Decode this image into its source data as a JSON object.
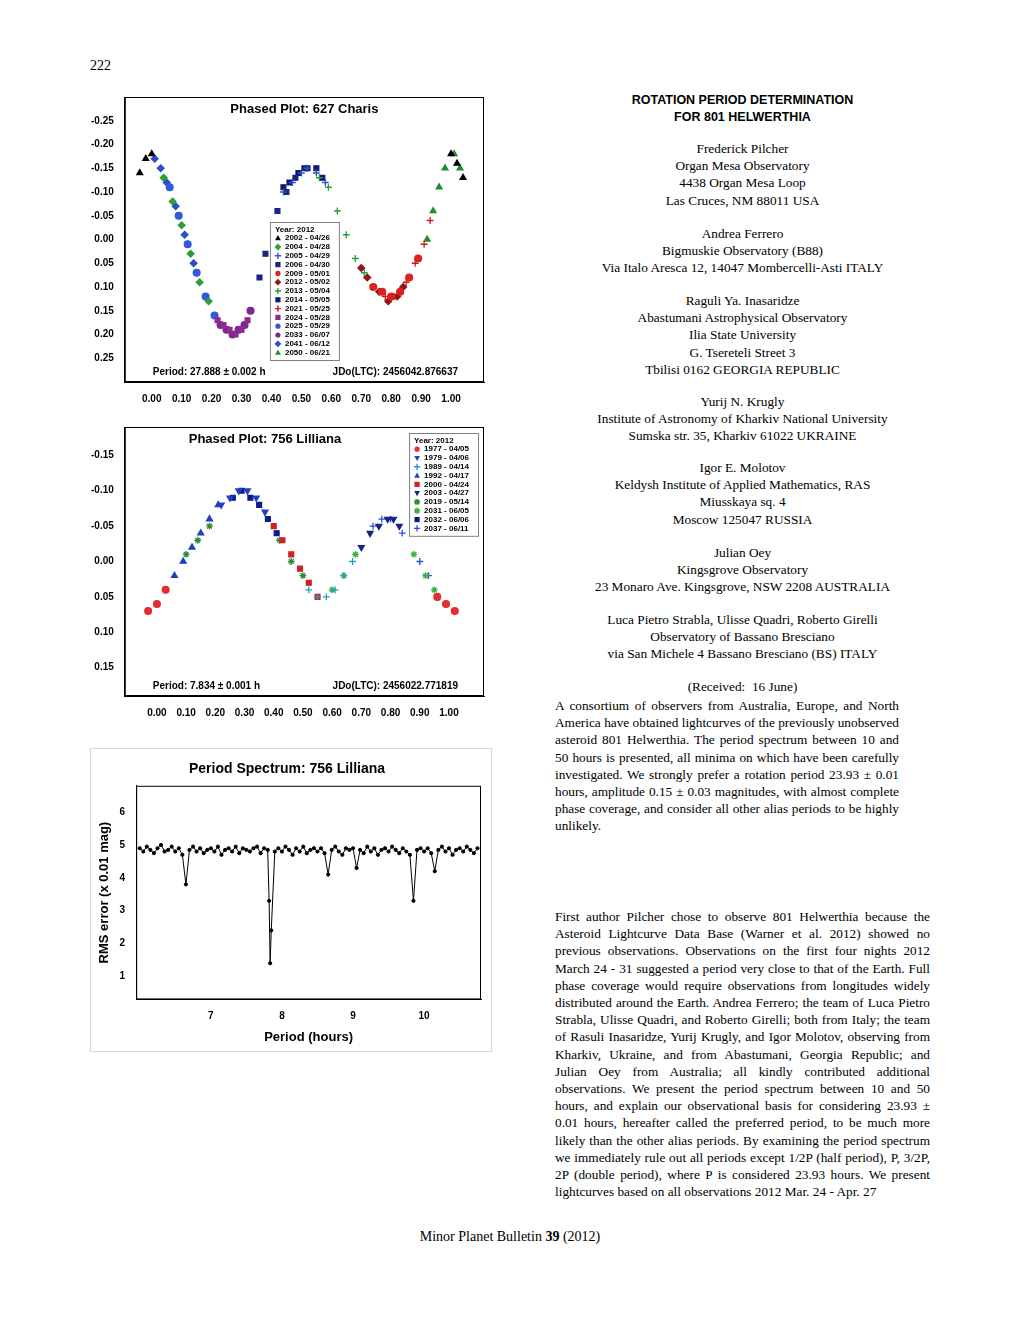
{
  "page_number": "222",
  "chart_data": [
    {
      "type": "scatter",
      "title": "Phased Plot: 627 Charis",
      "legend": "lower center",
      "legend_title": "Year: 2012",
      "annotations": [
        "Period: 27.888 ± 0.002 h",
        "JDo(LTC): 2456042.876637"
      ],
      "grid": false,
      "xlim": [
        -0.09,
        1.11
      ],
      "xticks": [
        {
          "value": 0,
          "label": "0.00"
        },
        {
          "value": 0.1,
          "label": "0.10"
        },
        {
          "value": 0.2,
          "label": "0.20"
        },
        {
          "value": 0.3,
          "label": "0.30"
        },
        {
          "value": 0.4,
          "label": "0.40"
        },
        {
          "value": 0.5,
          "label": "0.50"
        },
        {
          "value": 0.6,
          "label": "0.60"
        },
        {
          "value": 0.7,
          "label": "0.70"
        },
        {
          "value": 0.8,
          "label": "0.80"
        },
        {
          "value": 0.9,
          "label": "0.90"
        },
        {
          "value": 1,
          "label": "1.00"
        }
      ],
      "ylim": [
        0.3,
        -0.3
      ],
      "yticks": [
        {
          "value": -0.25,
          "label": "-0.25"
        },
        {
          "value": -0.2,
          "label": "-0.20"
        },
        {
          "value": -0.15,
          "label": "-0.15"
        },
        {
          "value": -0.1,
          "label": "-0.10"
        },
        {
          "value": -0.05,
          "label": "-0.05"
        },
        {
          "value": 0,
          "label": "0.00"
        },
        {
          "value": 0.05,
          "label": "0.05"
        },
        {
          "value": 0.1,
          "label": "0.10"
        },
        {
          "value": 0.15,
          "label": "0.15"
        },
        {
          "value": 0.2,
          "label": "0.20"
        },
        {
          "value": 0.25,
          "label": "0.25"
        }
      ],
      "series": [
        {
          "name": "2002 - 04/26",
          "color": "#000000",
          "marker": "triangle",
          "x": [
            -0.04,
            -0.02,
            0.0,
            1.0,
            1.02,
            1.04
          ],
          "values": [
            -0.14,
            -0.17,
            -0.18,
            -0.18,
            -0.16,
            -0.13
          ]
        },
        {
          "name": "2004 - 04/28",
          "color": "#2e9e3e",
          "marker": "diamond",
          "x": [
            0.04,
            0.07,
            0.1,
            0.13,
            0.16,
            0.19
          ],
          "values": [
            -0.13,
            -0.08,
            -0.03,
            0.03,
            0.09,
            0.13
          ]
        },
        {
          "name": "2005 - 04/29",
          "color": "#3050d0",
          "marker": "plus",
          "x": [
            0.44,
            0.47,
            0.5,
            0.52,
            0.55,
            0.58
          ],
          "values": [
            -0.1,
            -0.12,
            -0.14,
            -0.15,
            -0.14,
            -0.12
          ]
        },
        {
          "name": "2006 - 04/30",
          "color": "#1a237e",
          "marker": "square",
          "x": [
            0.36,
            0.38,
            0.42,
            0.45,
            0.48,
            0.51
          ],
          "values": [
            0.08,
            0.03,
            -0.06,
            -0.1,
            -0.13,
            -0.15
          ]
        },
        {
          "name": "2009 - 05/01",
          "color": "#e02020",
          "marker": "circle",
          "x": [
            0.74,
            0.77,
            0.8,
            0.83,
            0.86,
            0.89
          ],
          "values": [
            0.1,
            0.11,
            0.12,
            0.11,
            0.08,
            0.04
          ]
        },
        {
          "name": "2012 - 05/02",
          "color": "#8b1a1a",
          "marker": "diamond",
          "x": [
            0.7,
            0.72,
            0.76,
            0.79,
            0.82,
            0.84
          ],
          "values": [
            0.06,
            0.08,
            0.11,
            0.13,
            0.12,
            0.1
          ]
        },
        {
          "name": "2013 - 05/04",
          "color": "#22a033",
          "marker": "plus",
          "x": [
            0.56,
            0.59,
            0.62,
            0.65,
            0.68,
            0.71
          ],
          "values": [
            -0.13,
            -0.11,
            -0.06,
            -0.01,
            0.04,
            0.07
          ]
        },
        {
          "name": "2014 - 05/05",
          "color": "#0d1b6e",
          "marker": "square",
          "x": [
            0.44,
            0.46,
            0.49,
            0.52,
            0.55,
            0.57
          ],
          "values": [
            -0.11,
            -0.12,
            -0.14,
            -0.15,
            -0.15,
            -0.13
          ]
        },
        {
          "name": "2021 - 05/25",
          "color": "#d01818",
          "marker": "plus",
          "x": [
            0.78,
            0.81,
            0.85,
            0.88,
            0.91,
            0.93
          ],
          "values": [
            0.12,
            0.12,
            0.09,
            0.05,
            0.01,
            -0.04
          ]
        },
        {
          "name": "2024 - 05/28",
          "color": "#8e2a8e",
          "marker": "square",
          "x": [
            0.22,
            0.24,
            0.26,
            0.28,
            0.3,
            0.32
          ],
          "values": [
            0.17,
            0.18,
            0.19,
            0.2,
            0.19,
            0.17
          ]
        },
        {
          "name": "2025 - 05/29",
          "color": "#2f5bd8",
          "marker": "circle",
          "x": [
            0.06,
            0.09,
            0.12,
            0.15,
            0.18,
            0.21
          ],
          "values": [
            -0.11,
            -0.05,
            0.01,
            0.07,
            0.12,
            0.16
          ]
        },
        {
          "name": "2033 - 06/07",
          "color": "#7b2a8a",
          "marker": "circle",
          "x": [
            0.23,
            0.25,
            0.27,
            0.29,
            0.31,
            0.33
          ],
          "values": [
            0.18,
            0.19,
            0.2,
            0.19,
            0.18,
            0.15
          ]
        },
        {
          "name": "2041 - 06/12",
          "color": "#2a4fc8",
          "marker": "diamond",
          "x": [
            0.01,
            0.03,
            0.05,
            0.08,
            0.11,
            0.14
          ],
          "values": [
            -0.17,
            -0.15,
            -0.12,
            -0.07,
            -0.01,
            0.05
          ]
        },
        {
          "name": "2050 - 06/21",
          "color": "#1f8f2f",
          "marker": "triangle",
          "x": [
            0.92,
            0.94,
            0.96,
            0.98,
            1.01,
            1.03
          ],
          "values": [
            0.0,
            -0.06,
            -0.11,
            -0.15,
            -0.18,
            -0.15
          ]
        }
      ]
    },
    {
      "type": "scatter",
      "title": "Phased Plot: 756 Lilliana",
      "legend": "upper right",
      "legend_title": "Year: 2012",
      "annotations": [
        "Period: 7.834 ± 0.001 h",
        "JDo(LTC): 2456022.771819"
      ],
      "grid": false,
      "xlim": [
        -0.11,
        1.12
      ],
      "xticks": [
        {
          "value": 0,
          "label": "0.00"
        },
        {
          "value": 0.1,
          "label": "0.10"
        },
        {
          "value": 0.2,
          "label": "0.20"
        },
        {
          "value": 0.3,
          "label": "0.30"
        },
        {
          "value": 0.4,
          "label": "0.40"
        },
        {
          "value": 0.5,
          "label": "0.50"
        },
        {
          "value": 0.6,
          "label": "0.60"
        },
        {
          "value": 0.7,
          "label": "0.70"
        },
        {
          "value": 0.8,
          "label": "0.80"
        },
        {
          "value": 0.9,
          "label": "0.90"
        },
        {
          "value": 1,
          "label": "1.00"
        }
      ],
      "ylim": [
        0.19,
        -0.19
      ],
      "yticks": [
        {
          "value": -0.15,
          "label": "-0.15"
        },
        {
          "value": -0.1,
          "label": "-0.10"
        },
        {
          "value": -0.05,
          "label": "-0.05"
        },
        {
          "value": 0,
          "label": "0.00"
        },
        {
          "value": 0.05,
          "label": "0.05"
        },
        {
          "value": 0.1,
          "label": "0.10"
        },
        {
          "value": 0.15,
          "label": "0.15"
        }
      ],
      "series": [
        {
          "name": "1977 - 04/05",
          "color": "#e03030",
          "marker": "circle",
          "x": [
            -0.03,
            0.0,
            0.03,
            0.96,
            0.99,
            1.02
          ],
          "values": [
            0.07,
            0.06,
            0.04,
            0.05,
            0.06,
            0.07
          ]
        },
        {
          "name": "1979 - 04/06",
          "color": "#2040c0",
          "marker": "triangle_down",
          "x": [
            0.22,
            0.25,
            0.28,
            0.31,
            0.34,
            0.37
          ],
          "values": [
            -0.08,
            -0.09,
            -0.1,
            -0.1,
            -0.09,
            -0.07
          ]
        },
        {
          "name": "1989 - 04/14",
          "color": "#20a0c0",
          "marker": "plus",
          "x": [
            0.52,
            0.55,
            0.58,
            0.61,
            0.64,
            0.67
          ],
          "values": [
            0.04,
            0.05,
            0.05,
            0.04,
            0.02,
            0.0
          ]
        },
        {
          "name": "1992 - 04/17",
          "color": "#1f3fbf",
          "marker": "triangle",
          "x": [
            0.06,
            0.09,
            0.12,
            0.15,
            0.18,
            0.21
          ],
          "values": [
            0.02,
            0.0,
            -0.02,
            -0.04,
            -0.06,
            -0.08
          ]
        },
        {
          "name": "2000 - 04/24",
          "color": "#d02020",
          "marker": "square",
          "x": [
            0.4,
            0.43,
            0.46,
            0.49,
            0.52,
            0.55
          ],
          "values": [
            -0.05,
            -0.03,
            -0.01,
            0.01,
            0.03,
            0.05
          ]
        },
        {
          "name": "2003 - 04/27",
          "color": "#1a237e",
          "marker": "triangle_down",
          "x": [
            0.7,
            0.73,
            0.76,
            0.79,
            0.81,
            0.83
          ],
          "values": [
            -0.02,
            -0.04,
            -0.05,
            -0.06,
            -0.06,
            -0.05
          ]
        },
        {
          "name": "2019 - 05/14",
          "color": "#2e8b2e",
          "marker": "star",
          "x": [
            0.1,
            0.14,
            0.18,
            0.42,
            0.46,
            0.5
          ],
          "values": [
            -0.01,
            -0.03,
            -0.05,
            -0.03,
            0.0,
            0.02
          ]
        },
        {
          "name": "2031 - 06/05",
          "color": "#3cb043",
          "marker": "star",
          "x": [
            0.6,
            0.64,
            0.68,
            0.88,
            0.92,
            0.95
          ],
          "values": [
            0.04,
            0.02,
            -0.01,
            -0.01,
            0.02,
            0.04
          ]
        },
        {
          "name": "2032 - 06/06",
          "color": "#0d1b8a",
          "marker": "square",
          "x": [
            0.26,
            0.29,
            0.32,
            0.35,
            0.38,
            0.41
          ],
          "values": [
            -0.09,
            -0.1,
            -0.09,
            -0.08,
            -0.06,
            -0.04
          ]
        },
        {
          "name": "2037 - 06/11",
          "color": "#3050e0",
          "marker": "plus",
          "x": [
            0.74,
            0.77,
            0.8,
            0.84,
            0.9,
            0.93
          ],
          "values": [
            -0.05,
            -0.06,
            -0.06,
            -0.04,
            0.0,
            0.02
          ]
        }
      ]
    },
    {
      "type": "line",
      "title": "Period Spectrum: 756 Lilliana",
      "x_label": "Period (hours)",
      "y_label": "RMS error (x 0.01 mag)",
      "grid": false,
      "marker": "circle",
      "color": "#000000",
      "xlim": [
        5.95,
        10.8
      ],
      "xticks": [
        7,
        8,
        9,
        10
      ],
      "ylim": [
        0.3,
        6.8
      ],
      "yticks": [
        1,
        2,
        3,
        4,
        5,
        6
      ],
      "x": [
        6.0,
        6.05,
        6.1,
        6.15,
        6.2,
        6.25,
        6.3,
        6.35,
        6.4,
        6.45,
        6.5,
        6.55,
        6.6,
        6.65,
        6.7,
        6.75,
        6.8,
        6.85,
        6.9,
        6.95,
        7.0,
        7.05,
        7.1,
        7.15,
        7.2,
        7.25,
        7.3,
        7.35,
        7.4,
        7.45,
        7.5,
        7.55,
        7.6,
        7.65,
        7.7,
        7.75,
        7.8,
        7.82,
        7.834,
        7.85,
        7.9,
        7.95,
        8.0,
        8.05,
        8.1,
        8.15,
        8.2,
        8.25,
        8.3,
        8.35,
        8.4,
        8.45,
        8.5,
        8.55,
        8.6,
        8.65,
        8.7,
        8.75,
        8.8,
        8.85,
        8.9,
        8.95,
        9.0,
        9.05,
        9.1,
        9.15,
        9.2,
        9.25,
        9.3,
        9.35,
        9.4,
        9.45,
        9.5,
        9.55,
        9.6,
        9.65,
        9.7,
        9.75,
        9.8,
        9.85,
        9.9,
        9.95,
        10.0,
        10.05,
        10.1,
        10.15,
        10.2,
        10.25,
        10.3,
        10.35,
        10.4,
        10.45,
        10.5,
        10.55,
        10.6,
        10.65,
        10.7,
        10.75
      ],
      "values": [
        4.9,
        4.8,
        4.95,
        4.85,
        4.75,
        4.9,
        5.0,
        4.8,
        4.85,
        4.95,
        4.8,
        4.9,
        4.7,
        3.8,
        4.85,
        4.95,
        4.8,
        4.9,
        4.75,
        4.85,
        4.9,
        4.8,
        4.95,
        4.7,
        4.85,
        4.9,
        4.8,
        4.95,
        4.75,
        4.9,
        4.85,
        4.8,
        4.9,
        4.95,
        4.75,
        4.9,
        4.85,
        3.3,
        1.4,
        2.4,
        4.8,
        4.9,
        4.8,
        4.95,
        4.85,
        4.7,
        4.9,
        4.8,
        4.95,
        4.75,
        4.85,
        4.9,
        4.8,
        4.9,
        4.75,
        4.1,
        4.85,
        4.95,
        4.8,
        4.7,
        4.9,
        4.85,
        4.9,
        4.3,
        4.85,
        4.75,
        4.95,
        4.8,
        4.9,
        4.7,
        4.85,
        4.9,
        4.8,
        4.95,
        4.85,
        4.75,
        4.9,
        4.8,
        4.7,
        3.3,
        4.85,
        4.9,
        4.8,
        4.9,
        4.75,
        4.2,
        4.85,
        4.95,
        4.8,
        4.9,
        4.7,
        4.85,
        4.9,
        4.8,
        4.95,
        4.85,
        4.75,
        4.9
      ]
    }
  ],
  "article": {
    "title": [
      "ROTATION PERIOD DETERMINATION",
      "FOR 801 HELWERTHIA"
    ],
    "authors": [
      [
        "Frederick Pilcher",
        "Organ Mesa Observatory",
        "4438 Organ Mesa Loop",
        "Las Cruces, NM 88011 USA"
      ],
      [
        "Andrea Ferrero",
        "Bigmuskie Observatory (B88)",
        "Via Italo Aresca 12, 14047 Mombercelli-Asti ITALY"
      ],
      [
        "Raguli Ya. Inasaridze",
        "Abastumani Astrophysical Observatory",
        "Ilia State University",
        "G. Tsereteli Street 3",
        "Tbilisi 0162 GEORGIA REPUBLIC"
      ],
      [
        "Yurij N. Krugly",
        "Institute of Astronomy of Kharkiv National University",
        "Sumska str. 35, Kharkiv 61022 UKRAINE"
      ],
      [
        "Igor E. Molotov",
        "Keldysh Institute of Applied Mathematics, RAS",
        "Miusskaya sq. 4",
        "Moscow 125047 RUSSIA"
      ],
      [
        "Julian Oey",
        "Kingsgrove Observatory",
        "23 Monaro Ave. Kingsgrove, NSW 2208 AUSTRALIA"
      ],
      [
        "Luca Pietro Strabla, Ulisse Quadri, Roberto Girelli",
        "Observatory of Bassano Bresciano",
        "via San Michele 4 Bassano Bresciano (BS) ITALY"
      ]
    ],
    "received": "(Received:  16 June)",
    "abstract": "A consortium of observers from Australia, Europe, and North America have obtained lightcurves of the previously unobserved asteroid 801 Helwerthia. The period spectrum between 10 and 50 hours is presented, all minima on which have been carefully investigated. We strongly prefer a rotation period 23.93 ± 0.01 hours, amplitude 0.15 ± 0.03 magnitudes, with almost complete phase coverage, and consider all other alias periods to be highly unlikely.",
    "body": "First author Pilcher chose to observe 801 Helwerthia because the Asteroid Lightcurve Data Base (Warner et al. 2012) showed no previous observations. Observations on the first four nights 2012 March 24 - 31 suggested a period very close to that of the Earth. Full phase coverage would require observations from longitudes widely distributed around the Earth. Andrea Ferrero; the team of Luca Pietro Strabla, Ulisse Quadri, and Roberto Girelli; both from Italy; the team of Rasuli Inasaridze, Yurij Krugly, and Igor Molotov, observing from Kharkiv, Ukraine, and from Abastumani, Georgia Republic; and Julian Oey from Australia; all kindly contributed additional observations. We present the period spectrum between 10 and 50 hours, and explain our observational basis for considering 23.93 ± 0.01 hours, hereafter called the preferred period, to be much more likely than the other alias periods. By examining the period spectrum we immediately rule out all periods except 1/2P (half period), P, 3/2P, 2P (double period), where P is considered 23.93 hours. We present lightcurves based on all observations 2012 Mar. 24 - Apr. 27"
  },
  "footer": {
    "journal": "Minor Planet Bulletin",
    "volume": "39",
    "year": "(2012)"
  }
}
